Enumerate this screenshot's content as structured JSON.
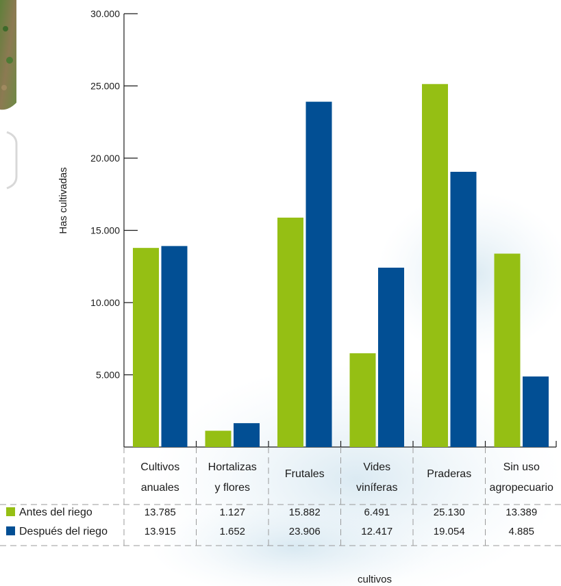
{
  "chart_data": {
    "type": "bar",
    "title": "",
    "ylabel": "Has cultivadas",
    "xlabel": "cultivos",
    "ylim": [
      0,
      30000
    ],
    "yticks": [
      5000,
      10000,
      15000,
      20000,
      25000,
      30000
    ],
    "ytick_labels": [
      "5.000",
      "10.000",
      "15.000",
      "20.000",
      "25.000",
      "30.000"
    ],
    "categories": [
      [
        "Cultivos",
        "anuales"
      ],
      [
        "Hortalizas",
        "y flores"
      ],
      [
        "Frutales"
      ],
      [
        "Vides",
        "viníferas"
      ],
      [
        "Praderas"
      ],
      [
        "Sin uso",
        "agropecuario"
      ]
    ],
    "series": [
      {
        "name": "Antes del riego",
        "color": "#95bf14",
        "values": [
          13785,
          1127,
          15882,
          6491,
          25130,
          13389
        ],
        "value_labels": [
          "13.785",
          "1.127",
          "15.882",
          "6.491",
          "25.130",
          "13.389"
        ]
      },
      {
        "name": "Después del riego",
        "color": "#024f94",
        "values": [
          13915,
          1652,
          23906,
          12417,
          19054,
          4885
        ],
        "value_labels": [
          "13.915",
          "1.652",
          "23.906",
          "12.417",
          "19.054",
          "4.885"
        ]
      }
    ],
    "grid": false,
    "legend": "left of data table, below chart"
  }
}
